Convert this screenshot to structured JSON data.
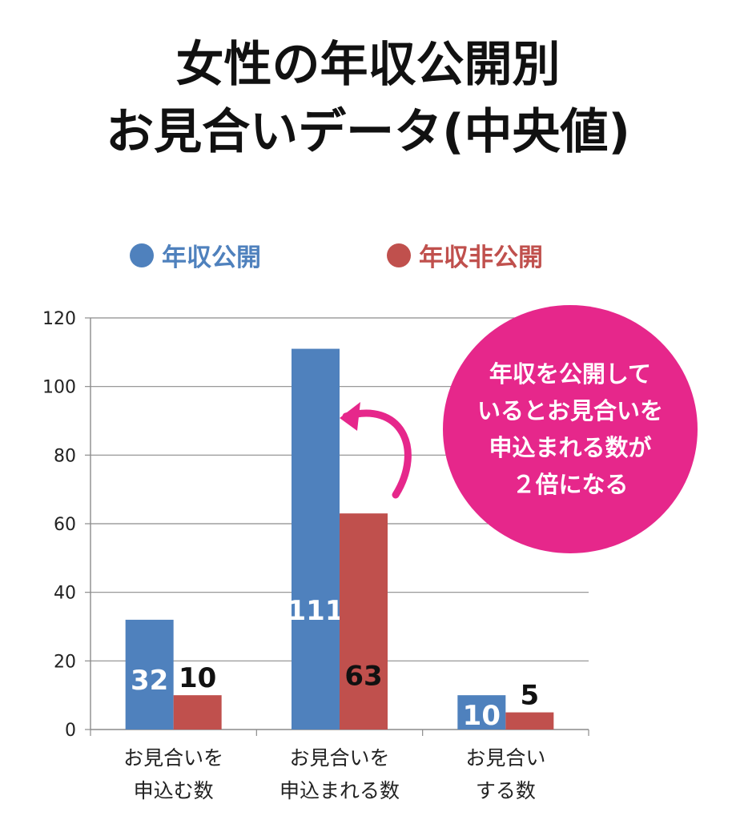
{
  "title": {
    "line1": "女性の年収公開別",
    "line2": "お見合いデータ(中央値)"
  },
  "legend": [
    {
      "label": "年収公開",
      "color": "#4f81bd"
    },
    {
      "label": "年収非公開",
      "color": "#c0504d"
    }
  ],
  "callout": {
    "lines": [
      "年収を公開して",
      "いるとお見合いを",
      "申込まれる数が",
      "２倍になる"
    ],
    "color": "#e6278b"
  },
  "chart_data": {
    "type": "bar",
    "title": "女性の年収公開別 お見合いデータ(中央値)",
    "categories": [
      [
        "お見合いを",
        "申込む数"
      ],
      [
        "お見合いを",
        "申込まれる数"
      ],
      [
        "お見合い",
        "する数"
      ]
    ],
    "series": [
      {
        "name": "年収公開",
        "values": [
          32,
          111,
          10
        ],
        "color": "#4f81bd"
      },
      {
        "name": "年収非公開",
        "values": [
          10,
          63,
          5
        ],
        "color": "#c0504d"
      }
    ],
    "ylim": [
      0,
      120
    ],
    "yticks": [
      0,
      20,
      40,
      60,
      80,
      100,
      120
    ],
    "grid": true,
    "legend_position": "top"
  }
}
